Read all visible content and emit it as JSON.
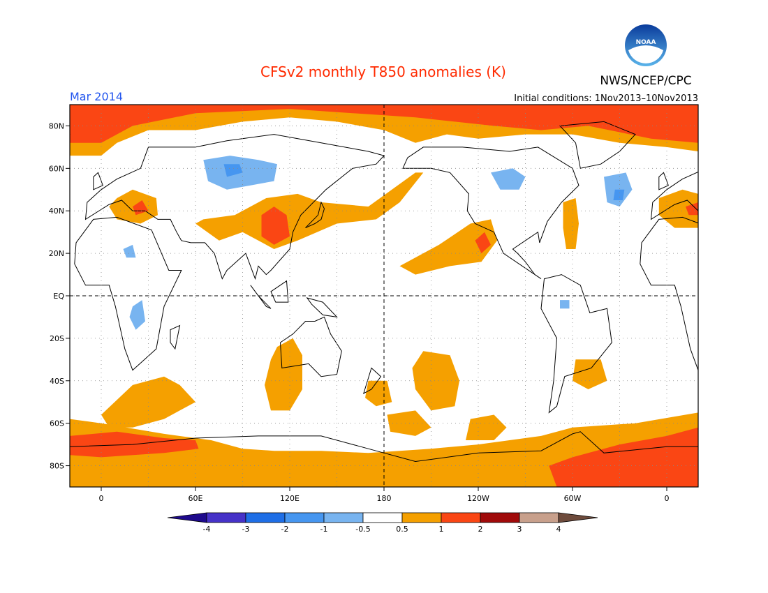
{
  "title": "CFSv2 monthly T850 anomalies (K)",
  "agency": "NWS/NCEP/CPC",
  "logo_text": "NOAA",
  "valid_month": "Mar 2014",
  "initial_conditions": "Initial conditions: 1Nov2013–10Nov2013",
  "map": {
    "projection": "cylindrical equidistant, centered on 180",
    "longitude_range": [
      -20,
      380
    ],
    "latitude_range": [
      -90,
      90
    ],
    "lat_labels": [
      "80N",
      "60N",
      "40N",
      "20N",
      "EQ",
      "20S",
      "40S",
      "60S",
      "80S"
    ],
    "lon_labels": [
      "0",
      "60E",
      "120E",
      "180",
      "120W",
      "60W",
      "0"
    ]
  },
  "colorbar": {
    "ticks": [
      "-4",
      "-3",
      "-2",
      "-1",
      "-0.5",
      "0.5",
      "1",
      "2",
      "3",
      "4"
    ],
    "colors": [
      "#1e0a8c",
      "#4632c8",
      "#1e6ee6",
      "#4696f0",
      "#78b4f0",
      "#ffffff",
      "#f5a000",
      "#fa4614",
      "#a00a0a",
      "#c8a08c",
      "#6e4b3c"
    ]
  },
  "colors": {
    "title": "#ff2a00",
    "month": "#2255ee",
    "orange": "#f5a000",
    "red": "#fa4614",
    "light_blue": "#78b4f0",
    "blue": "#4696f0"
  }
}
